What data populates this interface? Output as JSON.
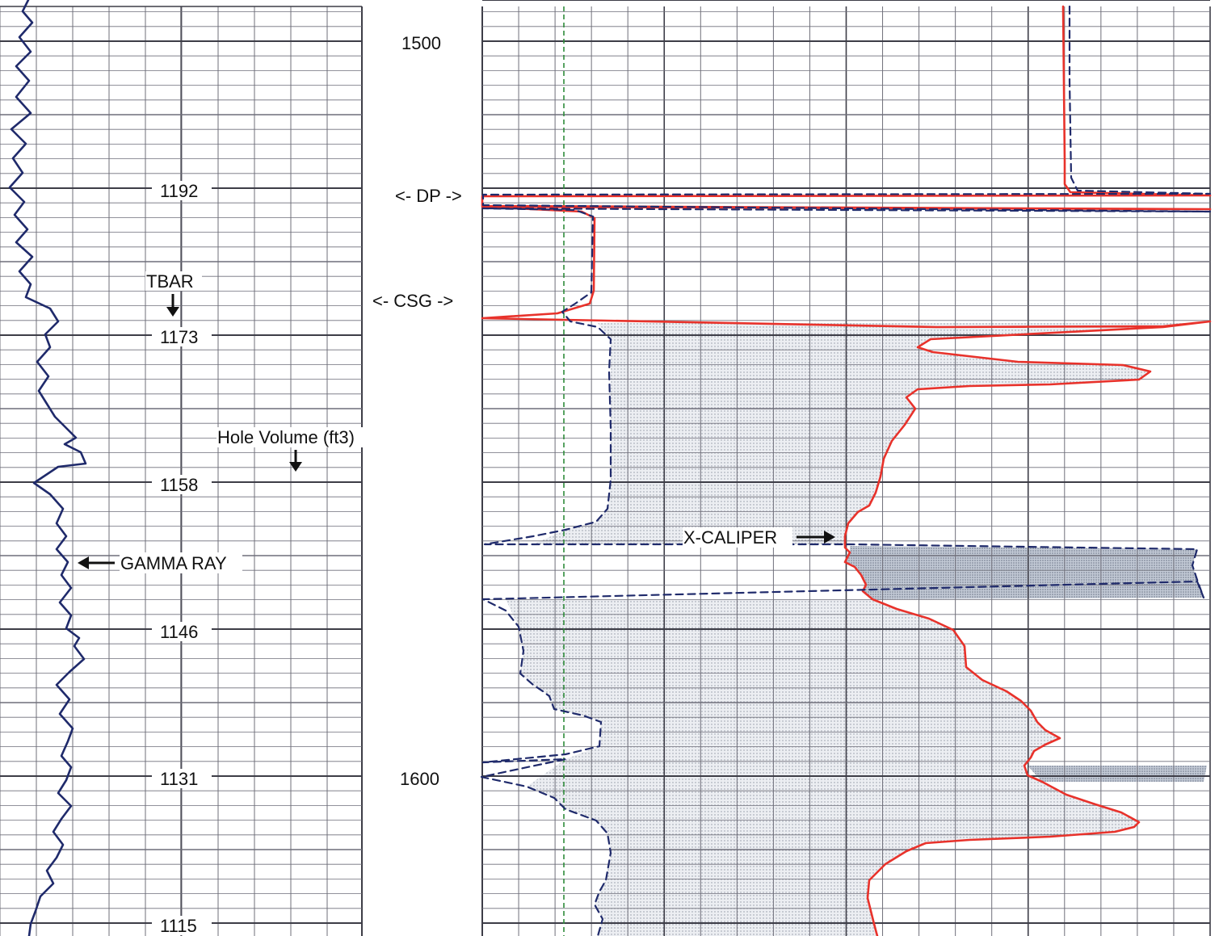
{
  "chart_data": {
    "type": "line",
    "tracks": [
      {
        "name": "left-track",
        "y_scale": "Hole Volume (ft3)",
        "tick_labels": [
          "1192",
          "1173",
          "1158",
          "1146",
          "1131",
          "1115"
        ],
        "series": [
          {
            "name": "GAMMA RAY",
            "color": "#1f2a6b",
            "style": "solid",
            "points": [
              [
                35,
                0
              ],
              [
                28,
                14
              ],
              [
                40,
                28
              ],
              [
                24,
                46
              ],
              [
                38,
                64
              ],
              [
                20,
                82
              ],
              [
                36,
                100
              ],
              [
                20,
                120
              ],
              [
                38,
                140
              ],
              [
                14,
                160
              ],
              [
                32,
                178
              ],
              [
                16,
                196
              ],
              [
                28,
                214
              ],
              [
                12,
                232
              ],
              [
                30,
                250
              ],
              [
                18,
                266
              ],
              [
                34,
                284
              ],
              [
                20,
                300
              ],
              [
                40,
                318
              ],
              [
                24,
                336
              ],
              [
                38,
                352
              ],
              [
                32,
                368
              ],
              [
                62,
                382
              ],
              [
                72,
                398
              ],
              [
                56,
                414
              ],
              [
                62,
                430
              ],
              [
                46,
                448
              ],
              [
                60,
                466
              ],
              [
                48,
                484
              ],
              [
                58,
                500
              ],
              [
                68,
                516
              ],
              [
                84,
                532
              ],
              [
                94,
                542
              ],
              [
                80,
                550
              ],
              [
                100,
                560
              ],
              [
                106,
                574
              ],
              [
                72,
                578
              ],
              [
                42,
                598
              ],
              [
                62,
                612
              ],
              [
                78,
                630
              ],
              [
                70,
                648
              ],
              [
                82,
                664
              ],
              [
                70,
                680
              ],
              [
                84,
                696
              ],
              [
                76,
                712
              ],
              [
                88,
                728
              ],
              [
                74,
                746
              ],
              [
                88,
                762
              ],
              [
                82,
                778
              ],
              [
                98,
                790
              ],
              [
                92,
                800
              ],
              [
                104,
                816
              ],
              [
                86,
                832
              ],
              [
                70,
                848
              ],
              [
                86,
                866
              ],
              [
                74,
                884
              ],
              [
                90,
                902
              ],
              [
                84,
                918
              ],
              [
                76,
                936
              ],
              [
                88,
                950
              ],
              [
                82,
                966
              ],
              [
                72,
                982
              ],
              [
                88,
                998
              ],
              [
                76,
                1014
              ],
              [
                66,
                1030
              ],
              [
                78,
                1046
              ],
              [
                70,
                1062
              ],
              [
                58,
                1078
              ],
              [
                66,
                1094
              ],
              [
                50,
                1110
              ],
              [
                44,
                1128
              ],
              [
                38,
                1144
              ],
              [
                36,
                1159
              ]
            ]
          }
        ]
      },
      {
        "name": "right-track",
        "depth_labels": [
          "1500",
          "1600"
        ],
        "series": [
          {
            "name": "X-CALIPER",
            "color": "#e8322b",
            "style": "solid",
            "points": [
              [
                1316,
                8
              ],
              [
                1318,
                200
              ],
              [
                1318,
                228
              ],
              [
                1325,
                238
              ],
              [
                1498,
                242
              ],
              [
                597,
                243
              ],
              [
                597,
                255
              ],
              [
                1498,
                259
              ],
              [
                597,
                256
              ],
              [
                720,
                262
              ],
              [
                736,
                270
              ],
              [
                735,
                360
              ],
              [
                730,
                376
              ],
              [
                690,
                388
              ],
              [
                597,
                394
              ],
              [
                1160,
                405
              ],
              [
                1440,
                404
              ],
              [
                1498,
                398
              ],
              [
                1440,
                405
              ],
              [
                1152,
                420
              ],
              [
                1136,
                430
              ],
              [
                1155,
                436
              ],
              [
                1260,
                448
              ],
              [
                1390,
                452
              ],
              [
                1424,
                460
              ],
              [
                1410,
                470
              ],
              [
                1300,
                476
              ],
              [
                1200,
                478
              ],
              [
                1136,
                482
              ],
              [
                1122,
                492
              ],
              [
                1133,
                506
              ],
              [
                1120,
                526
              ],
              [
                1104,
                546
              ],
              [
                1094,
                568
              ],
              [
                1090,
                590
              ],
              [
                1084,
                610
              ],
              [
                1076,
                626
              ],
              [
                1062,
                634
              ],
              [
                1050,
                648
              ],
              [
                1046,
                664
              ],
              [
                1046,
                678
              ],
              [
                1052,
                684
              ],
              [
                1046,
                696
              ],
              [
                1058,
                702
              ],
              [
                1066,
                712
              ],
              [
                1072,
                724
              ],
              [
                1068,
                732
              ],
              [
                1080,
                742
              ],
              [
                1110,
                754
              ],
              [
                1150,
                766
              ],
              [
                1180,
                780
              ],
              [
                1194,
                800
              ],
              [
                1196,
                826
              ],
              [
                1216,
                842
              ],
              [
                1246,
                856
              ],
              [
                1264,
                868
              ],
              [
                1276,
                880
              ],
              [
                1284,
                894
              ],
              [
                1294,
                904
              ],
              [
                1312,
                914
              ],
              [
                1294,
                922
              ],
              [
                1280,
                930
              ],
              [
                1276,
                938
              ],
              [
                1268,
                948
              ],
              [
                1272,
                960
              ],
              [
                1290,
                968
              ],
              [
                1320,
                984
              ],
              [
                1356,
                996
              ],
              [
                1388,
                1006
              ],
              [
                1410,
                1018
              ],
              [
                1404,
                1024
              ],
              [
                1380,
                1030
              ],
              [
                1300,
                1036
              ],
              [
                1200,
                1040
              ],
              [
                1146,
                1044
              ],
              [
                1122,
                1054
              ],
              [
                1096,
                1070
              ],
              [
                1076,
                1090
              ],
              [
                1074,
                1112
              ],
              [
                1078,
                1128
              ],
              [
                1082,
                1144
              ],
              [
                1086,
                1159
              ]
            ]
          },
          {
            "name": "dashed-curve",
            "color": "#1f2a6b",
            "style": "dashed",
            "points": [
              [
                1324,
                8
              ],
              [
                1324,
                100
              ],
              [
                1326,
                220
              ],
              [
                1334,
                236
              ],
              [
                1498,
                240
              ],
              [
                598,
                241
              ],
              [
                598,
                254
              ],
              [
                1498,
                262
              ],
              [
                598,
                258
              ],
              [
                712,
                260
              ],
              [
                734,
                268
              ],
              [
                732,
                362
              ],
              [
                712,
                376
              ],
              [
                696,
                386
              ],
              [
                706,
                398
              ],
              [
                740,
                405
              ],
              [
                756,
                420
              ],
              [
                754,
                460
              ],
              [
                756,
                530
              ],
              [
                756,
                594
              ],
              [
                752,
                630
              ],
              [
                738,
                646
              ],
              [
                700,
                656
              ],
              [
                660,
                664
              ],
              [
                600,
                674
              ],
              [
                1052,
                674
              ],
              [
                1482,
                680
              ],
              [
                1476,
                700
              ],
              [
                1482,
                718
              ],
              [
                1490,
                740
              ],
              [
                1482,
                720
              ],
              [
                598,
                742
              ],
              [
                626,
                756
              ],
              [
                642,
                776
              ],
              [
                648,
                806
              ],
              [
                644,
                834
              ],
              [
                660,
                848
              ],
              [
                672,
                856
              ],
              [
                680,
                862
              ],
              [
                686,
                878
              ],
              [
                722,
                886
              ],
              [
                744,
                894
              ],
              [
                742,
                924
              ],
              [
                700,
                934
              ],
              [
                598,
                944
              ],
              [
                700,
                940
              ],
              [
                596,
                962
              ],
              [
                652,
                974
              ],
              [
                686,
                988
              ],
              [
                700,
                1002
              ],
              [
                738,
                1016
              ],
              [
                752,
                1032
              ],
              [
                756,
                1056
              ],
              [
                750,
                1090
              ],
              [
                742,
                1104
              ],
              [
                736,
                1120
              ],
              [
                746,
                1138
              ],
              [
                740,
                1159
              ]
            ]
          }
        ]
      }
    ],
    "annotations": [
      {
        "text": "GAMMA RAY",
        "arrow": "left"
      },
      {
        "text": "TBAR",
        "arrow": "down"
      },
      {
        "text": "Hole Volume (ft3)",
        "arrow": "down"
      },
      {
        "text": "<- DP ->",
        "arrow": "none"
      },
      {
        "text": "<- CSG ->",
        "arrow": "none"
      },
      {
        "text": "X-CALIPER",
        "arrow": "right"
      }
    ],
    "grid": true,
    "colors": {
      "grid": "#6f6f7a",
      "grid_major": "#3d3d47",
      "bitsize_line": "#2e8b3a",
      "shading": "#d8dae0",
      "washout_shading": "#b6bfcc"
    }
  },
  "labels": {
    "gamma_ray": "GAMMA RAY",
    "tbar": "TBAR",
    "hole_volume": "Hole Volume (ft3)",
    "dp": "<- DP ->",
    "csg": "<- CSG ->",
    "x_caliper": "X-CALIPER",
    "depth_top": "1500",
    "depth_bottom": "1600",
    "vol_1": "1192",
    "vol_2": "1173",
    "vol_3": "1158",
    "vol_4": "1146",
    "vol_5": "1131",
    "vol_6": "1115"
  }
}
